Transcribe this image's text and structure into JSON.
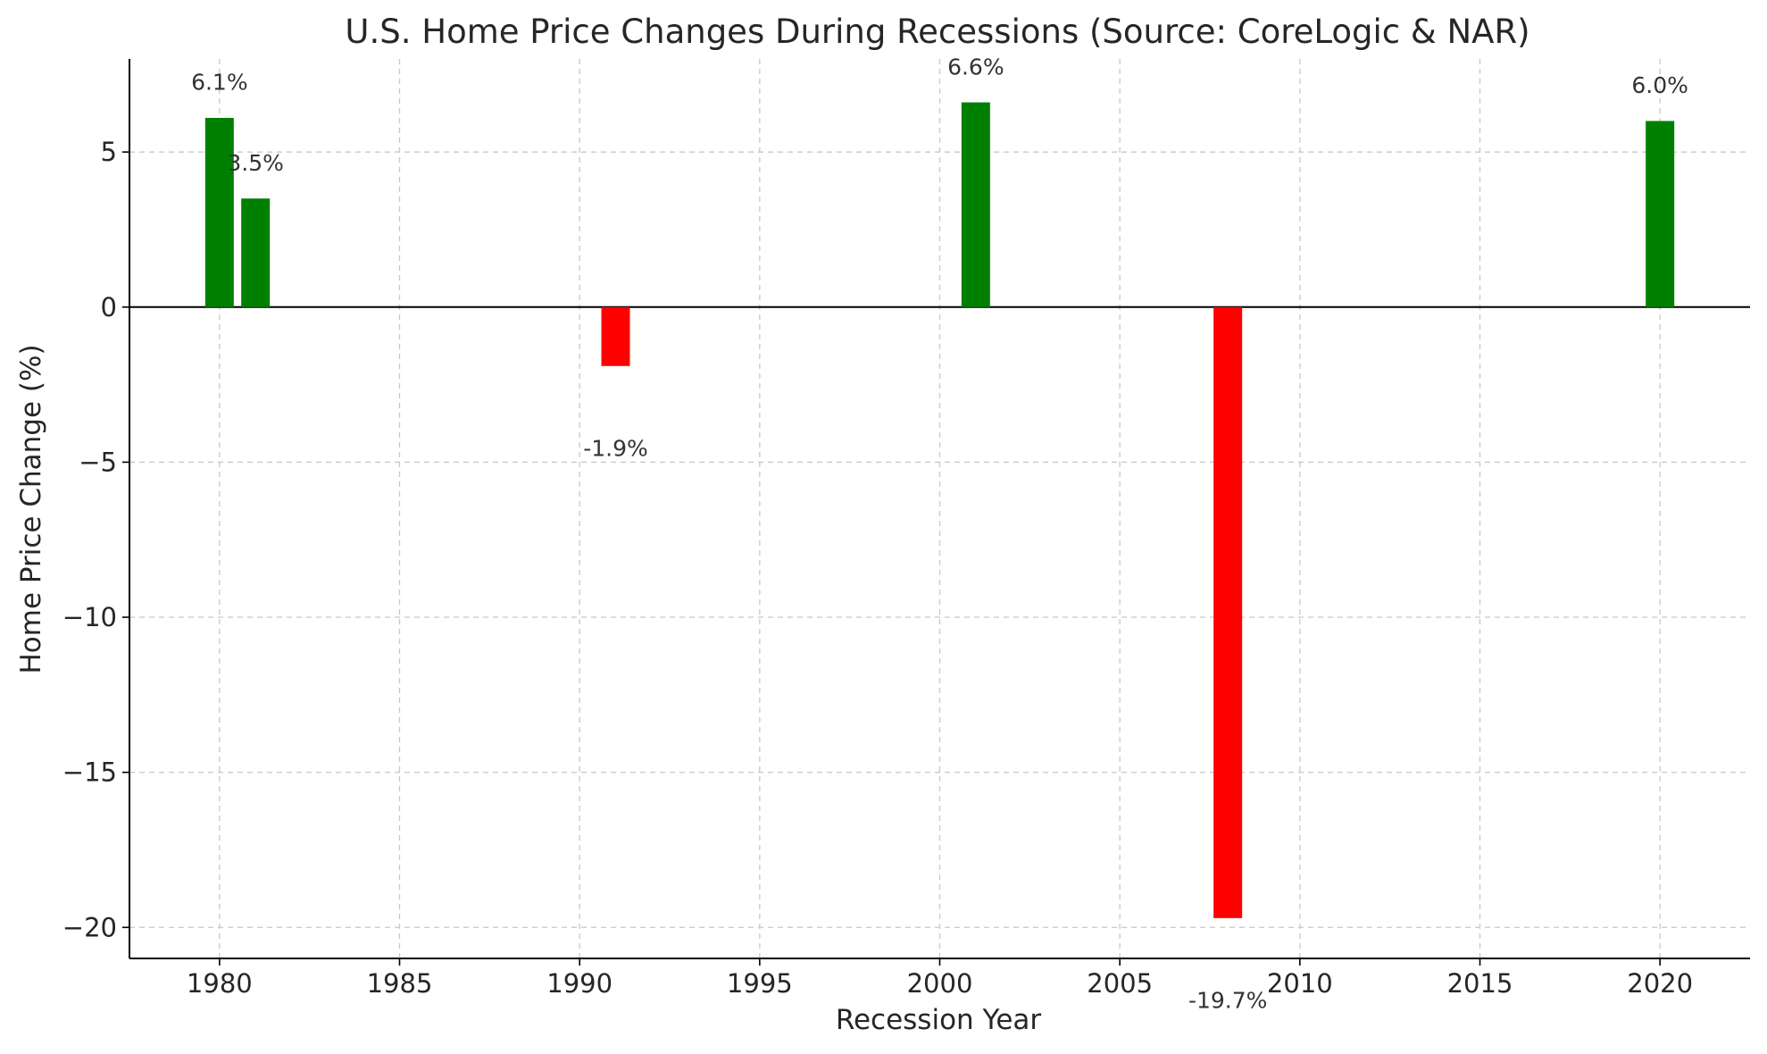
{
  "chart_data": {
    "type": "bar",
    "title": "U.S. Home Price Changes During Recessions (Source: CoreLogic & NAR)",
    "xlabel": "Recession Year",
    "ylabel": "Home Price Change (%)",
    "x": [
      1980,
      1981,
      1991,
      2001,
      2008,
      2020
    ],
    "values": [
      6.1,
      3.5,
      -1.9,
      6.6,
      -19.7,
      6.0
    ],
    "data_labels": [
      "6.1%",
      "3.5%",
      "-1.9%",
      "6.6%",
      "-19.7%",
      "6.0%"
    ],
    "colors": [
      "#008000",
      "#008000",
      "#ff0000",
      "#008000",
      "#ff0000",
      "#008000"
    ],
    "xlim": [
      1977.5,
      2022.5
    ],
    "ylim": [
      -21,
      8
    ],
    "x_ticks": [
      1980,
      1985,
      1990,
      1995,
      2000,
      2005,
      2010,
      2015,
      2020
    ],
    "x_tick_labels": [
      "1980",
      "1985",
      "1990",
      "1995",
      "2000",
      "2005",
      "2010",
      "2015",
      "2020"
    ],
    "y_ticks": [
      5,
      0,
      -5,
      -10,
      -15,
      -20
    ],
    "y_tick_labels": [
      "5",
      "0",
      "−5",
      "−10",
      "−15",
      "−20"
    ],
    "grid": true,
    "legend": "none"
  }
}
